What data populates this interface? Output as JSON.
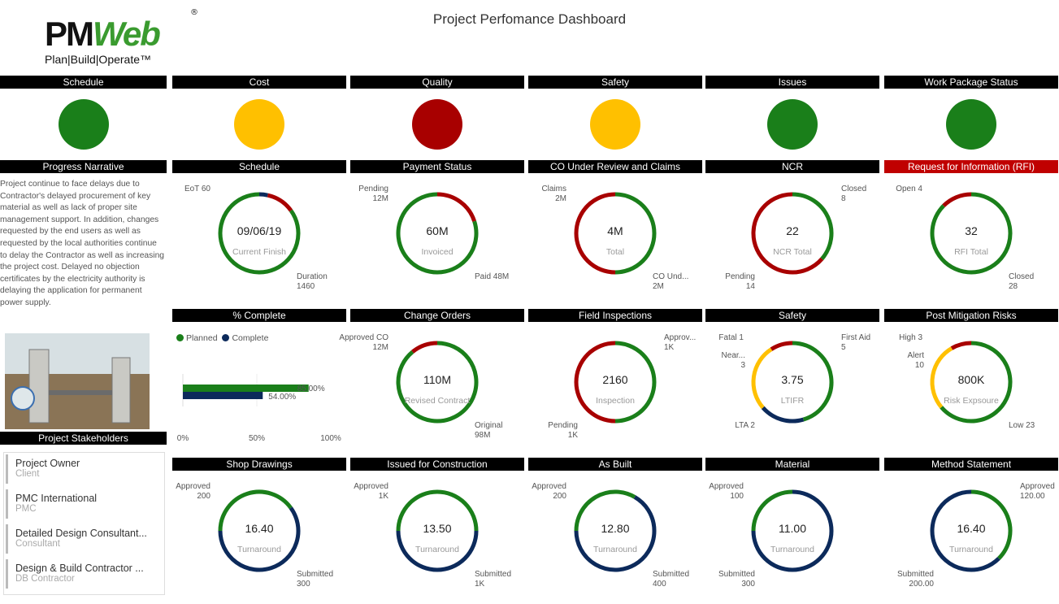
{
  "title": "Project Perfomance Dashboard",
  "logo": {
    "brand_a": "PM",
    "brand_b": "Web",
    "reg": "®",
    "tagline": "Plan|Build|Operate™"
  },
  "colors": {
    "green": "#1a7f1a",
    "yellow": "#ffc000",
    "red": "#b00000",
    "navy": "#0c2a5b"
  },
  "status": [
    {
      "label": "Schedule",
      "color": "#1a7f1a"
    },
    {
      "label": "Cost",
      "color": "#ffc000"
    },
    {
      "label": "Quality",
      "color": "#a80000"
    },
    {
      "label": "Safety",
      "color": "#ffc000"
    },
    {
      "label": "Issues",
      "color": "#1a7f1a"
    },
    {
      "label": "Work Package Status",
      "color": "#1a7f1a"
    }
  ],
  "narrative": {
    "header": "Progress Narrative",
    "text": "Project continue to face delays due to Contractor's delayed procurement of key material as well as lack of proper site management support. In addition, changes requested by the end users as well as requested by the local authorities continue to delay the Contractor as well as increasing the project cost. Delayed no objection certificates by the electricity authority is delaying the application for permanent power supply."
  },
  "stakeholders": {
    "header": "Project Stakeholders",
    "items": [
      {
        "name": "Project Owner",
        "role": "Client"
      },
      {
        "name": "PMC International",
        "role": "PMC"
      },
      {
        "name": "Detailed Design Consultant...",
        "role": "Consultant"
      },
      {
        "name": "Design & Build Contractor ...",
        "role": "DB Contractor"
      }
    ]
  },
  "complete_chart": {
    "header": "% Complete",
    "legend": [
      "Planned",
      "Complete"
    ],
    "planned": 85,
    "complete": 54,
    "planned_label": "85.00%",
    "complete_label": "54.00%",
    "ticks": [
      "0%",
      "50%",
      "100%"
    ]
  },
  "panels": [
    {
      "header": "Schedule",
      "value": "09/06/19",
      "caption": "Current Finish",
      "segments": [
        {
          "v": 60,
          "c": "#0c2a5b"
        },
        {
          "v": 200,
          "c": "#a80000"
        },
        {
          "v": 1460,
          "c": "#1a7f1a"
        }
      ],
      "labels": [
        {
          "lines": [
            "EoT 60"
          ],
          "pos": "tl"
        },
        {
          "lines": [
            "Duration",
            "1460"
          ],
          "pos": "br"
        }
      ]
    },
    {
      "header": "Payment Status",
      "value": "60M",
      "caption": "Invoiced",
      "segments": [
        {
          "v": 12,
          "c": "#a80000"
        },
        {
          "v": 48,
          "c": "#1a7f1a"
        }
      ],
      "labels": [
        {
          "lines": [
            "Pending",
            "12M"
          ],
          "pos": "tl"
        },
        {
          "lines": [
            "Paid 48M"
          ],
          "pos": "br"
        }
      ]
    },
    {
      "header": "CO Under Review and Claims",
      "value": "4M",
      "caption": "Total",
      "segments": [
        {
          "v": 2,
          "c": "#1a7f1a"
        },
        {
          "v": 2,
          "c": "#a80000"
        }
      ],
      "labels": [
        {
          "lines": [
            "Claims",
            "2M"
          ],
          "pos": "tl"
        },
        {
          "lines": [
            "CO Und...",
            "2M"
          ],
          "pos": "br"
        }
      ]
    },
    {
      "header": "NCR",
      "value": "22",
      "caption": "NCR Total",
      "segments": [
        {
          "v": 8,
          "c": "#1a7f1a"
        },
        {
          "v": 14,
          "c": "#a80000"
        }
      ],
      "labels": [
        {
          "lines": [
            "Closed",
            "8"
          ],
          "pos": "tr"
        },
        {
          "lines": [
            "Pending",
            "14"
          ],
          "pos": "bl"
        }
      ]
    },
    {
      "header": "Request for Information (RFI)",
      "red": true,
      "value": "32",
      "caption": "RFI Total",
      "segments": [
        {
          "v": 28,
          "c": "#1a7f1a"
        },
        {
          "v": 4,
          "c": "#a80000"
        }
      ],
      "labels": [
        {
          "lines": [
            "Open 4"
          ],
          "pos": "tl"
        },
        {
          "lines": [
            "Closed",
            "28"
          ],
          "pos": "br"
        }
      ]
    },
    {
      "header": "Change Orders",
      "value": "110M",
      "caption": "Revised Contract",
      "segments": [
        {
          "v": 98,
          "c": "#1a7f1a"
        },
        {
          "v": 12,
          "c": "#a80000"
        }
      ],
      "labels": [
        {
          "lines": [
            "Approved CO",
            "12M"
          ],
          "pos": "tl"
        },
        {
          "lines": [
            "Original",
            "98M"
          ],
          "pos": "br"
        }
      ]
    },
    {
      "header": "Field Inspections",
      "value": "2160",
      "caption": "Inspection",
      "segments": [
        {
          "v": 1080,
          "c": "#1a7f1a"
        },
        {
          "v": 1080,
          "c": "#a80000"
        }
      ],
      "labels": [
        {
          "lines": [
            "Approv...",
            "1K"
          ],
          "pos": "tr"
        },
        {
          "lines": [
            "Pending",
            "1K"
          ],
          "pos": "bl"
        }
      ]
    },
    {
      "header": "Safety",
      "value": "3.75",
      "caption": "LTIFR",
      "segments": [
        {
          "v": 5,
          "c": "#1a7f1a"
        },
        {
          "v": 2,
          "c": "#0c2a5b"
        },
        {
          "v": 3,
          "c": "#ffc000"
        },
        {
          "v": 1,
          "c": "#a80000"
        }
      ],
      "labels": [
        {
          "lines": [
            "Fatal 1"
          ],
          "pos": "tl"
        },
        {
          "lines": [
            "First Aid",
            "5"
          ],
          "pos": "tr"
        },
        {
          "lines": [
            "Near...",
            "3"
          ],
          "pos": "ml"
        },
        {
          "lines": [
            "LTA 2"
          ],
          "pos": "bl"
        }
      ]
    },
    {
      "header": "Post Mitigation Risks",
      "value": "800K",
      "caption": "Risk Expsoure",
      "segments": [
        {
          "v": 23,
          "c": "#1a7f1a"
        },
        {
          "v": 10,
          "c": "#ffc000"
        },
        {
          "v": 3,
          "c": "#a80000"
        }
      ],
      "labels": [
        {
          "lines": [
            "High 3"
          ],
          "pos": "tl"
        },
        {
          "lines": [
            "Alert",
            "10"
          ],
          "pos": "ml"
        },
        {
          "lines": [
            "Low 23"
          ],
          "pos": "br"
        }
      ]
    },
    {
      "header": "Shop Drawings",
      "value": "16.40",
      "caption": "Turnaround",
      "segments": [
        {
          "v": 200,
          "c": "#1a7f1a"
        },
        {
          "v": 300,
          "c": "#0c2a5b"
        }
      ],
      "start": "left",
      "labels": [
        {
          "lines": [
            "Approved",
            "200"
          ],
          "pos": "tl"
        },
        {
          "lines": [
            "Submitted",
            "300"
          ],
          "pos": "br"
        }
      ]
    },
    {
      "header": "Issued for Construction",
      "value": "13.50",
      "caption": "Turnaround",
      "segments": [
        {
          "v": 1,
          "c": "#1a7f1a"
        },
        {
          "v": 1,
          "c": "#0c2a5b"
        }
      ],
      "start": "left",
      "labels": [
        {
          "lines": [
            "Approved",
            "1K"
          ],
          "pos": "tl"
        },
        {
          "lines": [
            "Submitted",
            "1K"
          ],
          "pos": "br"
        }
      ]
    },
    {
      "header": "As Built",
      "value": "12.80",
      "caption": "Turnaround",
      "segments": [
        {
          "v": 200,
          "c": "#1a7f1a"
        },
        {
          "v": 400,
          "c": "#0c2a5b"
        }
      ],
      "start": "left",
      "labels": [
        {
          "lines": [
            "Approved",
            "200"
          ],
          "pos": "tl"
        },
        {
          "lines": [
            "Submitted",
            "400"
          ],
          "pos": "br"
        }
      ]
    },
    {
      "header": "Material",
      "value": "11.00",
      "caption": "Turnaround",
      "segments": [
        {
          "v": 100,
          "c": "#1a7f1a"
        },
        {
          "v": 300,
          "c": "#0c2a5b"
        }
      ],
      "start": "left",
      "labels": [
        {
          "lines": [
            "Approved",
            "100"
          ],
          "pos": "tl"
        },
        {
          "lines": [
            "Submitted",
            "300"
          ],
          "pos": "bl"
        }
      ]
    },
    {
      "header": "Method Statement",
      "value": "16.40",
      "caption": "Turnaround",
      "segments": [
        {
          "v": 120,
          "c": "#1a7f1a"
        },
        {
          "v": 200,
          "c": "#0c2a5b"
        }
      ],
      "labels": [
        {
          "lines": [
            "Approved",
            "120.00"
          ],
          "pos": "tr"
        },
        {
          "lines": [
            "Submitted",
            "200.00"
          ],
          "pos": "bl"
        }
      ]
    }
  ]
}
